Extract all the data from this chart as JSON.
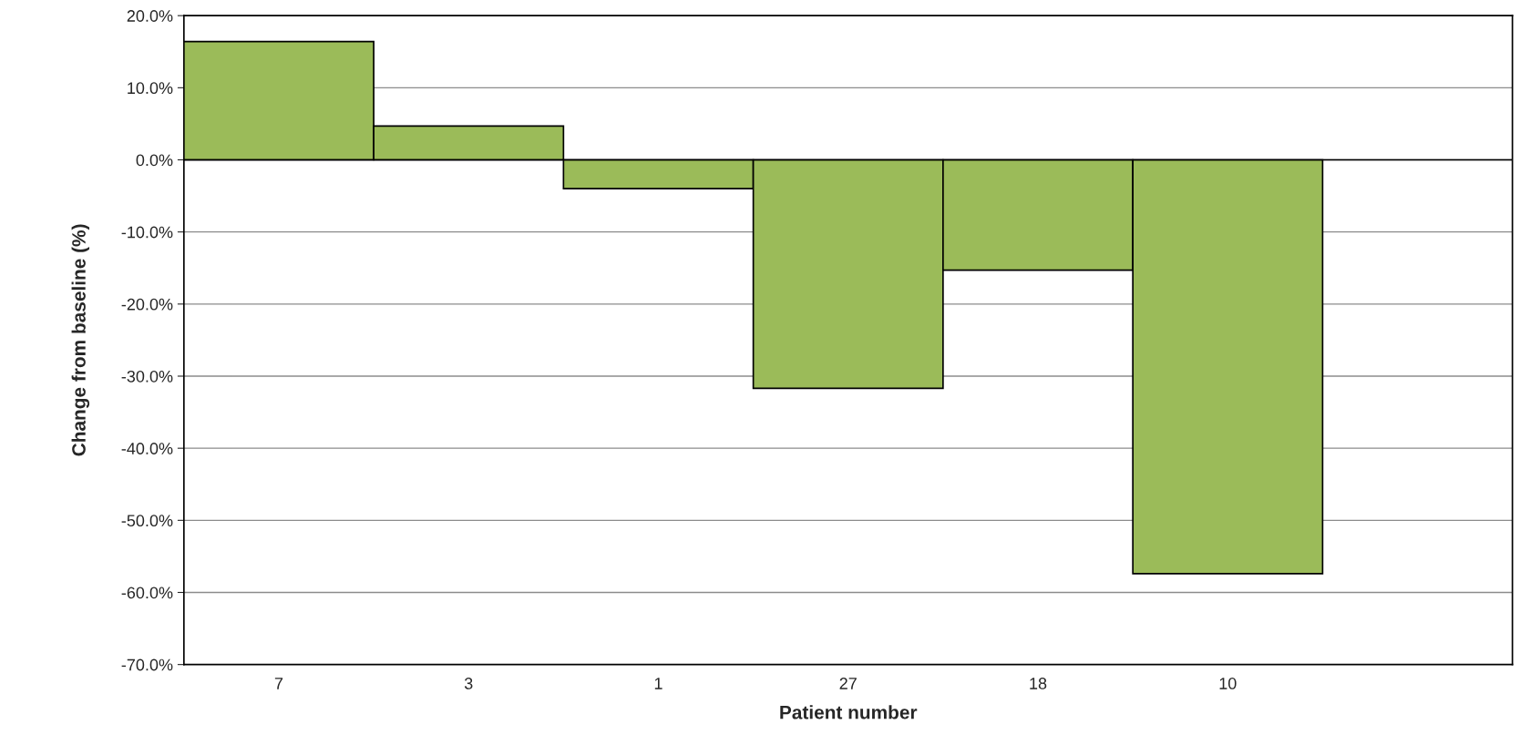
{
  "chart_data": {
    "type": "bar",
    "xlabel": "Patient number",
    "ylabel": "Change from baseline (%)",
    "categories": [
      "7",
      "3",
      "1",
      "27",
      "18",
      "10",
      null
    ],
    "values": [
      16.4,
      4.7,
      -4.0,
      -31.7,
      -15.3,
      -57.4,
      null
    ],
    "color": "#9bbb59",
    "ylim": [
      -70,
      20
    ],
    "yticks": [
      {
        "value": -70,
        "label": "-70.0%"
      },
      {
        "value": -60,
        "label": "-60.0%"
      },
      {
        "value": -50,
        "label": "-50.0%"
      },
      {
        "value": -40,
        "label": "-40.0%"
      },
      {
        "value": -30,
        "label": "-30.0%"
      },
      {
        "value": -20,
        "label": "-20.0%"
      },
      {
        "value": -10,
        "label": "-10.0%"
      },
      {
        "value": 0,
        "label": "0.0%"
      },
      {
        "value": 10,
        "label": "10.0%"
      },
      {
        "value": 20,
        "label": "20.0%"
      }
    ],
    "grid": "y",
    "legend": false
  }
}
